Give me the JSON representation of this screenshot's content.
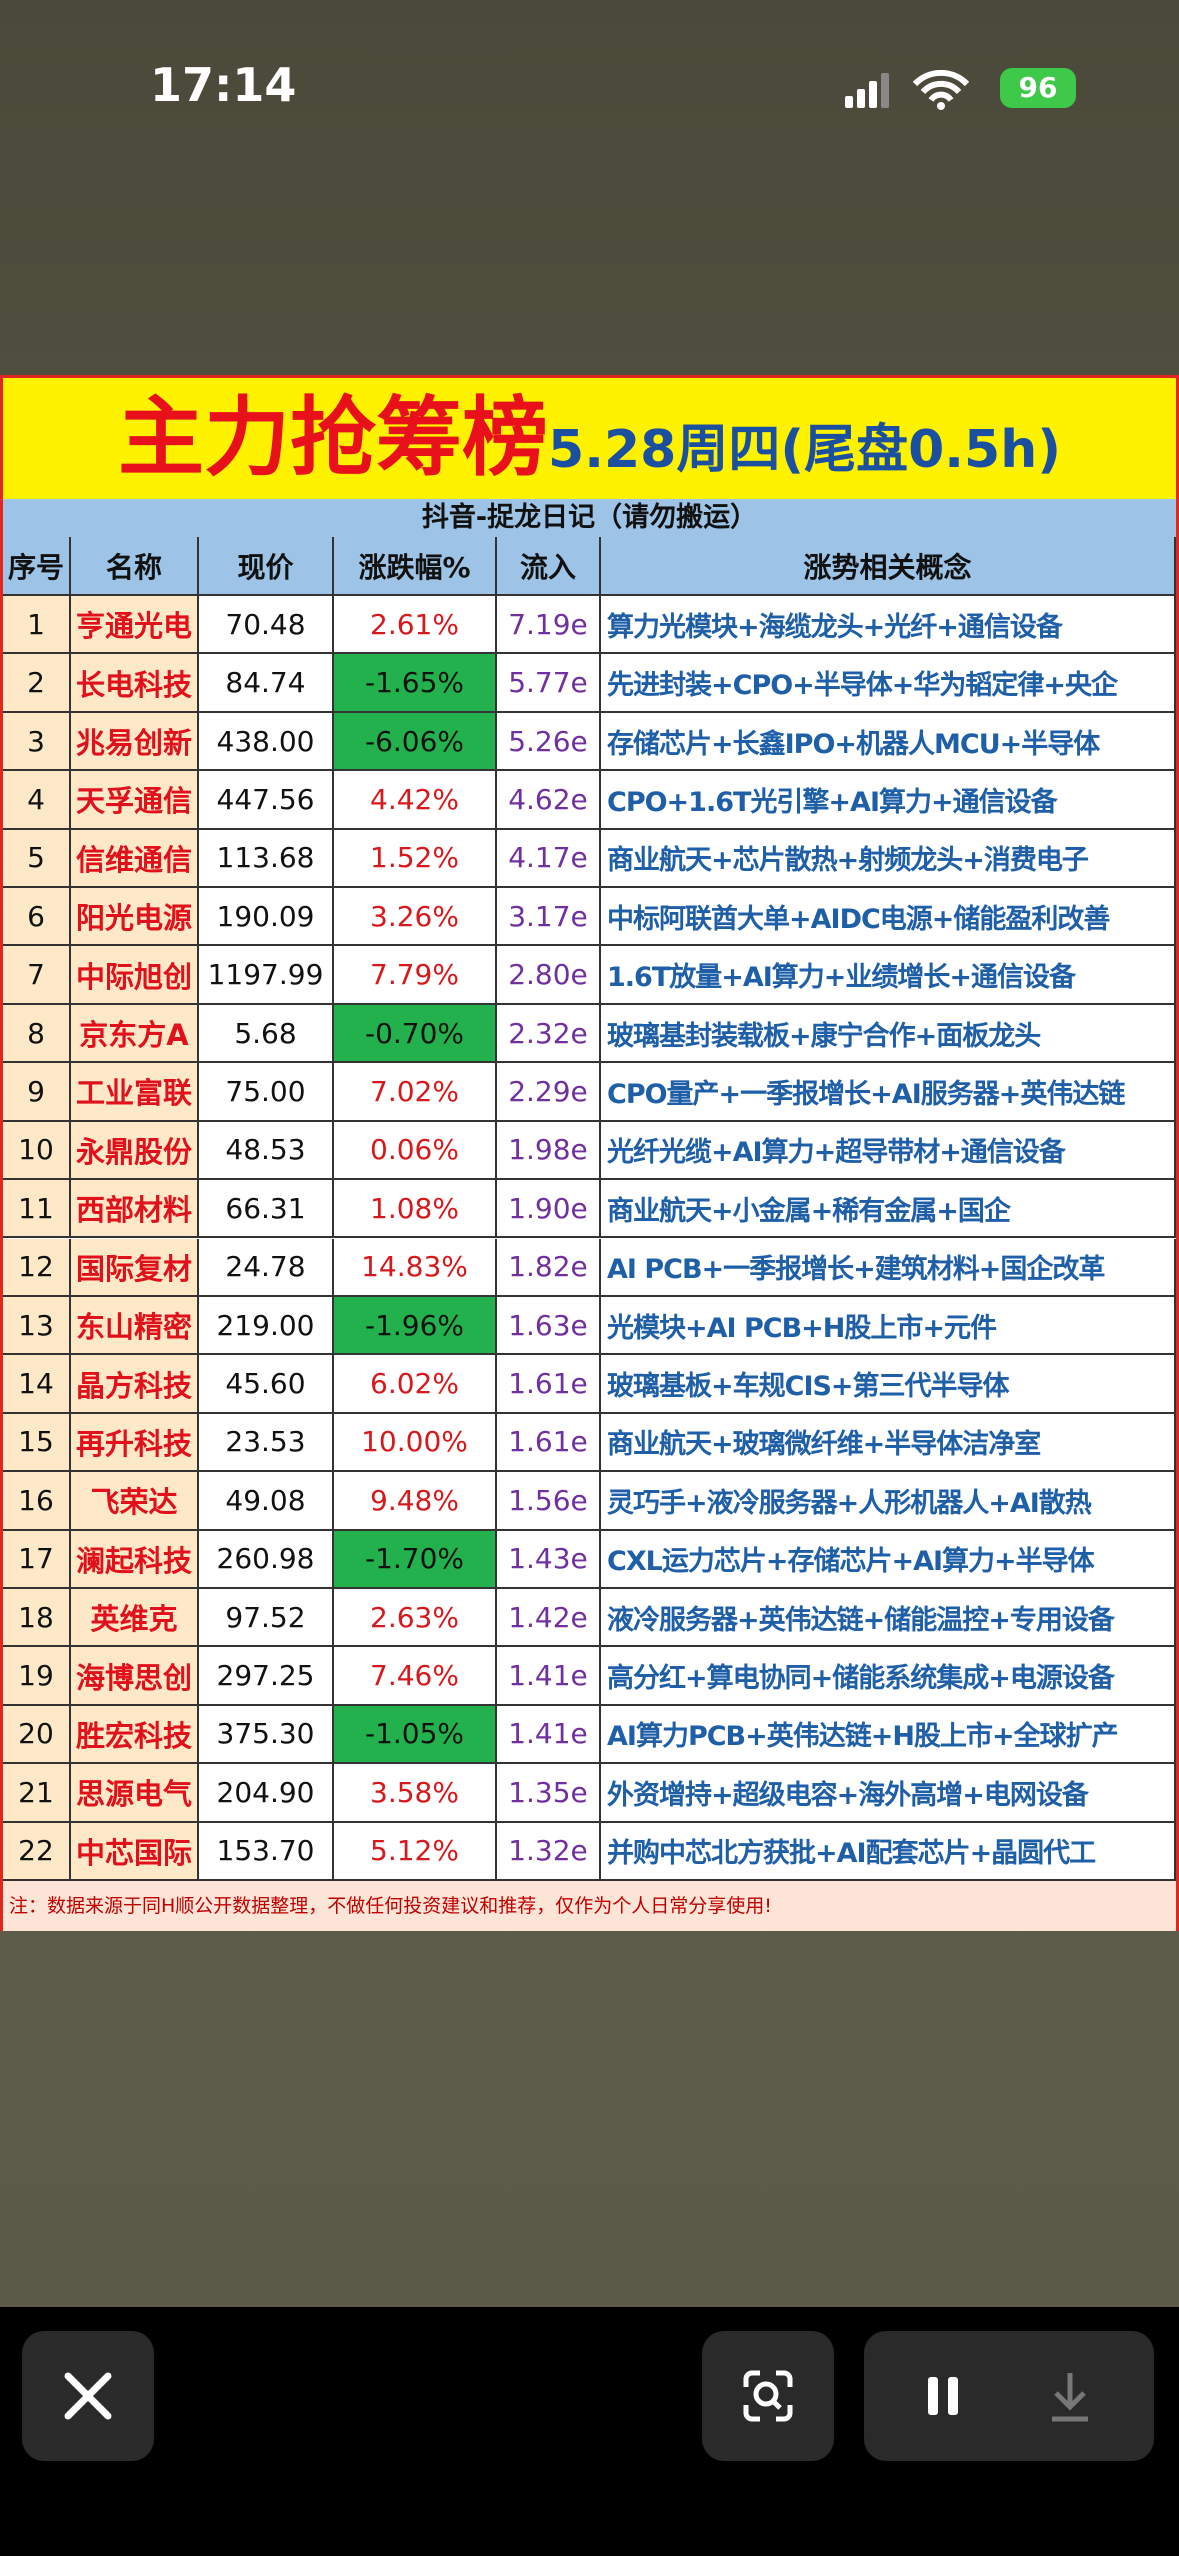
{
  "status_bar": {
    "time": "17:14",
    "battery": "96"
  },
  "header": {
    "title": "主力抢筹榜",
    "subtitle": "5.28周四(尾盘0.5h)",
    "source": "抖音-捉龙日记（请勿搬运）"
  },
  "table": {
    "headers": [
      "序号",
      "名称",
      "现价",
      "涨跌幅%",
      "流入",
      "涨势相关概念"
    ],
    "rows": [
      [
        "1",
        "亨通光电",
        "70.48",
        "2.61%",
        "7.19e",
        "算力光模块+海缆龙头+光纤+通信设备"
      ],
      [
        "2",
        "长电科技",
        "84.74",
        "-1.65%",
        "5.77e",
        "先进封装+CPO+半导体+华为韬定律+央企"
      ],
      [
        "3",
        "兆易创新",
        "438.00",
        "-6.06%",
        "5.26e",
        "存储芯片+长鑫IPO+机器人MCU+半导体"
      ],
      [
        "4",
        "天孚通信",
        "447.56",
        "4.42%",
        "4.62e",
        "CPO+1.6T光引擎+AI算力+通信设备"
      ],
      [
        "5",
        "信维通信",
        "113.68",
        "1.52%",
        "4.17e",
        "商业航天+芯片散热+射频龙头+消费电子"
      ],
      [
        "6",
        "阳光电源",
        "190.09",
        "3.26%",
        "3.17e",
        "中标阿联酋大单+AIDC电源+储能盈利改善"
      ],
      [
        "7",
        "中际旭创",
        "1197.99",
        "7.79%",
        "2.80e",
        "1.6T放量+AI算力+业绩增长+通信设备"
      ],
      [
        "8",
        "京东方A",
        "5.68",
        "-0.70%",
        "2.32e",
        "玻璃基封装载板+康宁合作+面板龙头"
      ],
      [
        "9",
        "工业富联",
        "75.00",
        "7.02%",
        "2.29e",
        "CPO量产+一季报增长+AI服务器+英伟达链"
      ],
      [
        "10",
        "永鼎股份",
        "48.53",
        "0.06%",
        "1.98e",
        "光纤光缆+AI算力+超导带材+通信设备"
      ],
      [
        "11",
        "西部材料",
        "66.31",
        "1.08%",
        "1.90e",
        "商业航天+小金属+稀有金属+国企"
      ],
      [
        "12",
        "国际复材",
        "24.78",
        "14.83%",
        "1.82e",
        "AI PCB+一季报增长+建筑材料+国企改革"
      ],
      [
        "13",
        "东山精密",
        "219.00",
        "-1.96%",
        "1.63e",
        "光模块+AI PCB+H股上市+元件"
      ],
      [
        "14",
        "晶方科技",
        "45.60",
        "6.02%",
        "1.61e",
        "玻璃基板+车规CIS+第三代半导体"
      ],
      [
        "15",
        "再升科技",
        "23.53",
        "10.00%",
        "1.61e",
        "商业航天+玻璃微纤维+半导体洁净室"
      ],
      [
        "16",
        "飞荣达",
        "49.08",
        "9.48%",
        "1.56e",
        "灵巧手+液冷服务器+人形机器人+AI散热"
      ],
      [
        "17",
        "澜起科技",
        "260.98",
        "-1.70%",
        "1.43e",
        "CXL运力芯片+存储芯片+AI算力+半导体"
      ],
      [
        "18",
        "英维克",
        "97.52",
        "2.63%",
        "1.42e",
        "液冷服务器+英伟达链+储能温控+专用设备"
      ],
      [
        "19",
        "海博思创",
        "297.25",
        "7.46%",
        "1.41e",
        "高分红+算电协同+储能系统集成+电源设备"
      ],
      [
        "20",
        "胜宏科技",
        "375.30",
        "-1.05%",
        "1.41e",
        "AI算力PCB+英伟达链+H股上市+全球扩产"
      ],
      [
        "21",
        "思源电气",
        "204.90",
        "3.58%",
        "1.35e",
        "外资增持+超级电容+海外高增+电网设备"
      ],
      [
        "22",
        "中芯国际",
        "153.70",
        "5.12%",
        "1.32e",
        "并购中芯北方获批+AI配套芯片+晶圆代工"
      ]
    ]
  },
  "footer": {
    "note": "注：数据来源于同H顺公开数据整理，不做任何投资建议和推荐，仅作为个人日常分享使用!"
  }
}
